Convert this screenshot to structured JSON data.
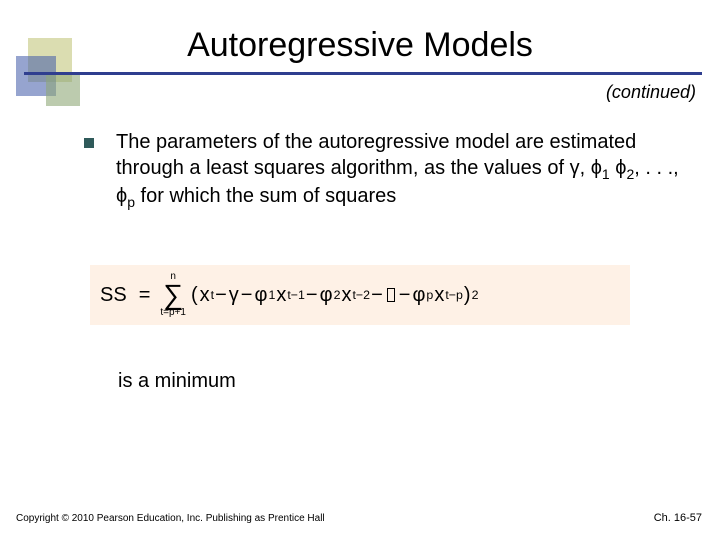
{
  "title": "Autoregressive Models",
  "continued": "(continued)",
  "bullet": {
    "text_parts": {
      "p1": "The parameters of the autoregressive model are estimated through a least squares algorithm, as the values of ",
      "gamma": "γ",
      "sep1": ", ",
      "phi": "ϕ",
      "s1": "1",
      "sep2": " ",
      "s2": "2",
      "sep3": ", . . ., ",
      "sp": "p",
      "p2": " for which the sum of squares"
    }
  },
  "formula": {
    "ss": "SS",
    "eq": "=",
    "sigma_top": "n",
    "sigma": "∑",
    "sigma_bot": "t=p+1",
    "lpar": "(",
    "x": "x",
    "t": "t",
    "minus": " − ",
    "gamma": "γ",
    "phi": "φ",
    "s1": "1",
    "tm1": "t−1",
    "s2": "2",
    "tm2": "t−2",
    "minus2": " −",
    "sp": "p",
    "tmp": "t−p",
    "rpar": ")",
    "sq": "2"
  },
  "is_min": "is a minimum",
  "footer_left": "Copyright © 2010 Pearson Education, Inc. Publishing as Prentice Hall",
  "footer_right": "Ch. 16-57",
  "colors": {
    "rule": "#2f3e8f",
    "bullet": "#2f5a5a",
    "formula_bg": "#fef1e6"
  }
}
